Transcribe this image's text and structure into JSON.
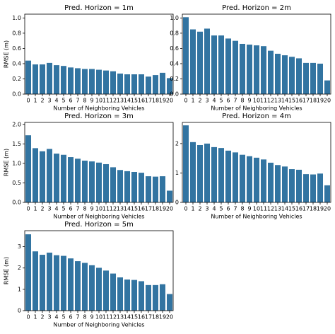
{
  "chart_data": [
    {
      "type": "bar",
      "title": "Pred. Horizon = 1m",
      "x_label": "Number of Neighboring Vehicles",
      "y_label": "RMSE (m)",
      "categories": [
        "0",
        "1",
        "2",
        "3",
        "4",
        "5",
        "6",
        "7",
        "8",
        "9",
        "10",
        "11",
        "12",
        "13",
        "14",
        "15",
        "16",
        "17",
        "18",
        "19",
        "20"
      ],
      "values": [
        0.44,
        0.39,
        0.39,
        0.41,
        0.38,
        0.37,
        0.35,
        0.34,
        0.33,
        0.33,
        0.32,
        0.31,
        0.3,
        0.27,
        0.26,
        0.26,
        0.26,
        0.23,
        0.25,
        0.28,
        0.21
      ],
      "color": "#3274a1",
      "ylim": [
        0,
        1.05
      ],
      "yticks": [
        {
          "value": 0,
          "label": "0.0"
        },
        {
          "value": 0.2,
          "label": "0.2"
        },
        {
          "value": 0.4,
          "label": "0.4"
        },
        {
          "value": 0.6,
          "label": "0.6"
        },
        {
          "value": 0.8,
          "label": "0.8"
        },
        {
          "value": 1.0,
          "label": "1.0"
        }
      ]
    },
    {
      "type": "bar",
      "title": "Pred. Horizon = 2m",
      "x_label": "Number of Neighboring Vehicles",
      "categories": [
        "0",
        "1",
        "2",
        "3",
        "4",
        "5",
        "6",
        "7",
        "8",
        "9",
        "10",
        "11",
        "12",
        "13",
        "14",
        "15",
        "16",
        "17",
        "18",
        "19",
        "20"
      ],
      "values": [
        1.01,
        0.85,
        0.82,
        0.86,
        0.77,
        0.77,
        0.73,
        0.7,
        0.66,
        0.65,
        0.64,
        0.63,
        0.57,
        0.53,
        0.51,
        0.49,
        0.47,
        0.41,
        0.41,
        0.4,
        0.18
      ],
      "color": "#3274a1",
      "ylim": [
        0,
        1.05
      ],
      "yticks": [
        {
          "value": 0,
          "label": "0.0"
        },
        {
          "value": 0.2,
          "label": "0.2"
        },
        {
          "value": 0.4,
          "label": "0.4"
        },
        {
          "value": 0.6,
          "label": "0.6"
        },
        {
          "value": 0.8,
          "label": "0.8"
        },
        {
          "value": 1.0,
          "label": "1.0"
        }
      ]
    },
    {
      "type": "bar",
      "title": "Pred. Horizon = 3m",
      "x_label": "Number of Neighboring Vehicles",
      "y_label": "RMSE (m)",
      "categories": [
        "0",
        "1",
        "2",
        "3",
        "4",
        "5",
        "6",
        "7",
        "8",
        "9",
        "10",
        "11",
        "12",
        "13",
        "14",
        "15",
        "16",
        "17",
        "18",
        "19",
        "20"
      ],
      "values": [
        1.72,
        1.39,
        1.31,
        1.37,
        1.25,
        1.22,
        1.16,
        1.12,
        1.07,
        1.05,
        1.02,
        0.98,
        0.9,
        0.83,
        0.8,
        0.78,
        0.76,
        0.67,
        0.66,
        0.67,
        0.3
      ],
      "color": "#3274a1",
      "ylim": [
        0,
        2.05
      ],
      "yticks": [
        {
          "value": 0,
          "label": "0.0"
        },
        0.5,
        {
          "value": 1.0,
          "label": "1.0"
        },
        1.5,
        {
          "value": 2.0,
          "label": "2.0"
        }
      ]
    },
    {
      "type": "bar",
      "title": "Pred. Horizon = 4m",
      "x_label": "Number of Neighboring Vehicles",
      "categories": [
        "0",
        "1",
        "2",
        "3",
        "4",
        "5",
        "6",
        "7",
        "8",
        "9",
        "10",
        "11",
        "12",
        "13",
        "14",
        "15",
        "16",
        "17",
        "18",
        "19",
        "20"
      ],
      "values": [
        2.62,
        2.05,
        1.95,
        2.0,
        1.88,
        1.85,
        1.76,
        1.7,
        1.62,
        1.57,
        1.52,
        1.46,
        1.35,
        1.27,
        1.22,
        1.13,
        1.11,
        0.96,
        0.95,
        0.98,
        0.58
      ],
      "color": "#3274a1",
      "ylim": [
        0,
        2.72
      ],
      "yticks": [
        0,
        1,
        2
      ]
    },
    {
      "type": "bar",
      "title": "Pred. Horizon = 5m",
      "x_label": "Number of Neighboring Vehicles",
      "y_label": "RMSE (m)",
      "categories": [
        "0",
        "1",
        "2",
        "3",
        "4",
        "5",
        "6",
        "7",
        "8",
        "9",
        "10",
        "11",
        "12",
        "13",
        "14",
        "15",
        "16",
        "17",
        "18",
        "19",
        "20"
      ],
      "values": [
        3.58,
        2.78,
        2.62,
        2.72,
        2.6,
        2.57,
        2.45,
        2.32,
        2.24,
        2.13,
        2.01,
        1.88,
        1.74,
        1.56,
        1.46,
        1.44,
        1.38,
        1.2,
        1.2,
        1.24,
        0.78
      ],
      "color": "#3274a1",
      "ylim": [
        0,
        3.75
      ],
      "yticks": [
        0,
        1,
        2,
        3
      ]
    }
  ]
}
